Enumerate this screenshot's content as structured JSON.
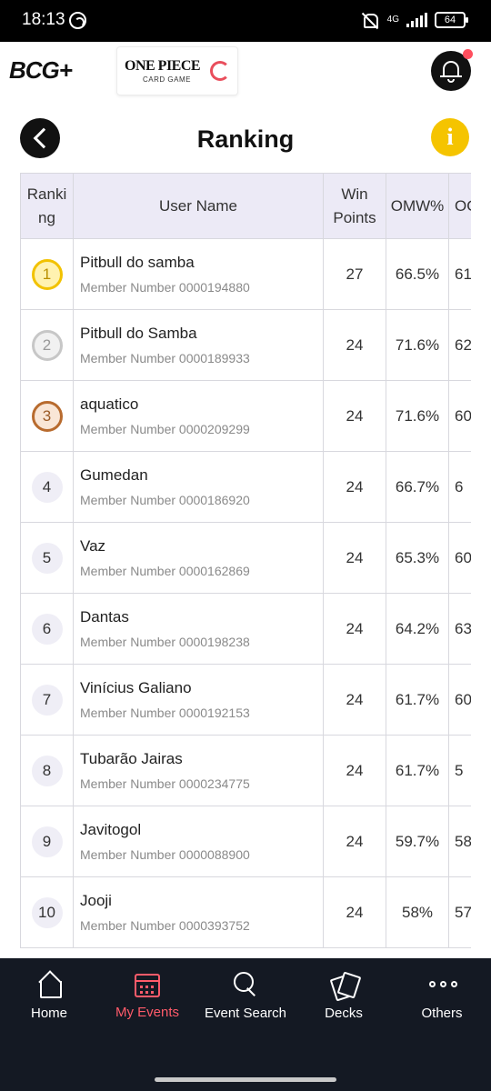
{
  "status_bar": {
    "time": "18:13",
    "network": "4G",
    "battery": "64",
    "icons": [
      "whatsapp-icon",
      "mute-icon",
      "signal-icon",
      "battery-icon"
    ]
  },
  "header": {
    "logo": "BCG+",
    "banner_title": "ONE PIECE",
    "banner_subtitle": "CARD GAME",
    "notification_badge_color": "#ff4f5e"
  },
  "page": {
    "title": "Ranking",
    "info_label": "i",
    "info_color": "#f5c400"
  },
  "table": {
    "headers": {
      "ranking": "Ranking",
      "user_name": "User Name",
      "win_points": "Win Points",
      "omw": "OMW%",
      "oo": "OO"
    },
    "rows": [
      {
        "rank": "1",
        "name": "Pitbull do samba",
        "member": "Member Number 0000194880",
        "points": "27",
        "omw": "66.5%",
        "oo": "61"
      },
      {
        "rank": "2",
        "name": "Pitbull do Samba",
        "member": "Member Number 0000189933",
        "points": "24",
        "omw": "71.6%",
        "oo": "62"
      },
      {
        "rank": "3",
        "name": "aquatico",
        "member": "Member Number 0000209299",
        "points": "24",
        "omw": "71.6%",
        "oo": "60"
      },
      {
        "rank": "4",
        "name": "Gumedan",
        "member": "Member Number 0000186920",
        "points": "24",
        "omw": "66.7%",
        "oo": "6"
      },
      {
        "rank": "5",
        "name": "Vaz",
        "member": "Member Number 0000162869",
        "points": "24",
        "omw": "65.3%",
        "oo": "60"
      },
      {
        "rank": "6",
        "name": "Dantas",
        "member": "Member Number 0000198238",
        "points": "24",
        "omw": "64.2%",
        "oo": "63"
      },
      {
        "rank": "7",
        "name": "Vinícius Galiano",
        "member": "Member Number 0000192153",
        "points": "24",
        "omw": "61.7%",
        "oo": "60"
      },
      {
        "rank": "8",
        "name": "Tubarão Jairas",
        "member": "Member Number 0000234775",
        "points": "24",
        "omw": "61.7%",
        "oo": "5"
      },
      {
        "rank": "9",
        "name": "Javitogol",
        "member": "Member Number 0000088900",
        "points": "24",
        "omw": "59.7%",
        "oo": "58"
      },
      {
        "rank": "10",
        "name": "Jooji",
        "member": "Member Number 0000393752",
        "points": "24",
        "omw": "58%",
        "oo": "57"
      }
    ]
  },
  "bottom_nav": {
    "active_color": "#ff5b6a",
    "items": [
      {
        "label": "Home",
        "icon": "home-icon"
      },
      {
        "label": "My Events",
        "icon": "calendar-icon"
      },
      {
        "label": "Event Search",
        "icon": "search-icon"
      },
      {
        "label": "Decks",
        "icon": "decks-icon"
      },
      {
        "label": "Others",
        "icon": "more-icon"
      }
    ]
  }
}
